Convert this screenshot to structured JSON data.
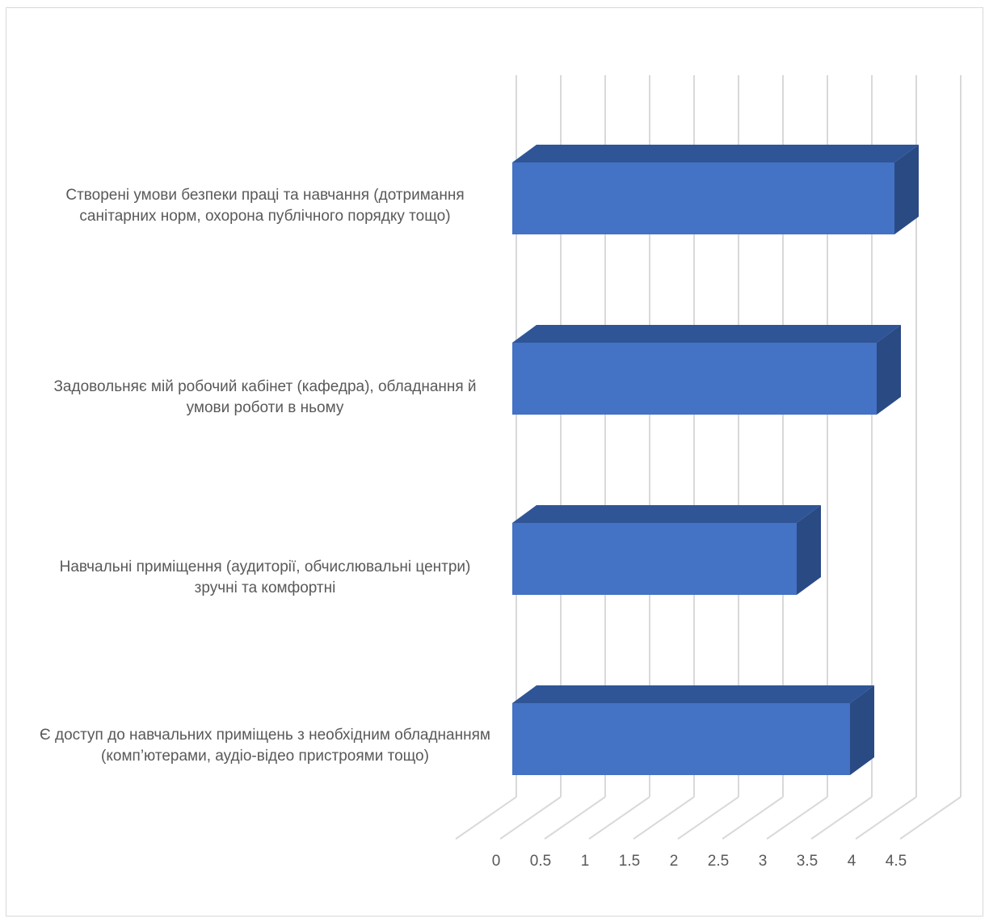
{
  "chart_data": {
    "type": "bar",
    "orientation": "horizontal",
    "style": "3d",
    "title": "",
    "xlabel": "",
    "ylabel": "",
    "categories": [
      "Створені умови безпеки праці та навчання (дотримання санітарних норм, охорона публічного порядку тощо)",
      "Задовольняє мій робочий кабінет (кафедра), обладнання й умови роботи в ньому",
      "Навчальні приміщення (аудиторії, обчислювальні центри) зручні та комфортні",
      "Є доступ до навчальних приміщень з необхідним обладнанням (комп’ютерами, аудіо-відео пристроями тощо)"
    ],
    "values": [
      4.3,
      4.1,
      3.2,
      3.8
    ],
    "xlim": [
      0,
      5
    ],
    "ticks": [
      0,
      0.5,
      1,
      1.5,
      2,
      2.5,
      3,
      3.5,
      4,
      4.5
    ],
    "tick_labels": [
      "0",
      "0.5",
      "1",
      "1.5",
      "2",
      "2.5",
      "3",
      "3.5",
      "4",
      "4.5"
    ],
    "grid": true,
    "legend": "none",
    "colors": {
      "front": "#4472c4",
      "top": "#2f5597",
      "side": "#2a4a84",
      "grid": "#d9d9d9",
      "text": "#595959"
    }
  }
}
